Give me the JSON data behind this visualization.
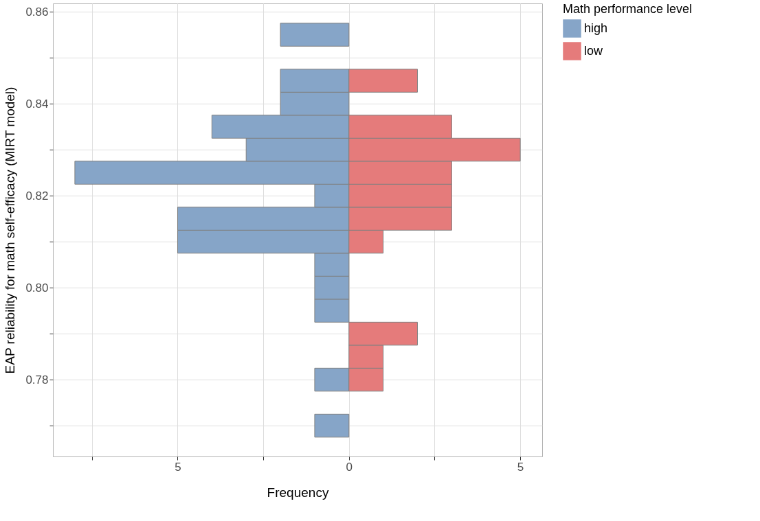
{
  "chart_data": {
    "type": "histogram",
    "orientation": "horizontal",
    "xlabel": "Frequency",
    "ylabel": "EAP reliability for math self-efficacy (MIRT model)",
    "legend_title": "Math performance level",
    "legend": "right",
    "grid": true,
    "bins": [
      0.7675,
      0.7725,
      0.7775,
      0.7825,
      0.7875,
      0.7925,
      0.7975,
      0.8025,
      0.8075,
      0.8125,
      0.8175,
      0.8225,
      0.8275,
      0.8325,
      0.8375,
      0.8425,
      0.8475,
      0.8525,
      0.8575
    ],
    "series": [
      {
        "name": "high",
        "color": "#86a5c8",
        "values": [
          -1,
          null,
          -1,
          null,
          null,
          -1,
          -1,
          -1,
          -5,
          -5,
          -1,
          -8,
          -3,
          -4,
          -2,
          -2,
          null,
          -2
        ]
      },
      {
        "name": "low",
        "color": "#e57b7b",
        "values": [
          null,
          null,
          1,
          1,
          2,
          null,
          null,
          null,
          1,
          3,
          3,
          3,
          5,
          3,
          null,
          2,
          null,
          null
        ]
      }
    ],
    "xlim": [
      -8.64,
      5.64
    ],
    "xticks": [
      {
        "value": -7.5,
        "label": null
      },
      {
        "value": -5,
        "label": "5"
      },
      {
        "value": -2.5,
        "label": null
      },
      {
        "value": 0,
        "label": "0"
      },
      {
        "value": 2.5,
        "label": null
      },
      {
        "value": 5,
        "label": "5"
      }
    ],
    "ylim": [
      0.7633,
      0.8618
    ],
    "yticks": [
      {
        "value": 0.77,
        "label": null
      },
      0.78,
      {
        "value": 0.79,
        "label": null
      },
      {
        "value": 0.8,
        "label": "0.80"
      },
      {
        "value": 0.81,
        "label": null
      },
      0.82,
      {
        "value": 0.83,
        "label": null
      },
      0.84,
      {
        "value": 0.85,
        "label": null
      },
      0.86
    ]
  }
}
